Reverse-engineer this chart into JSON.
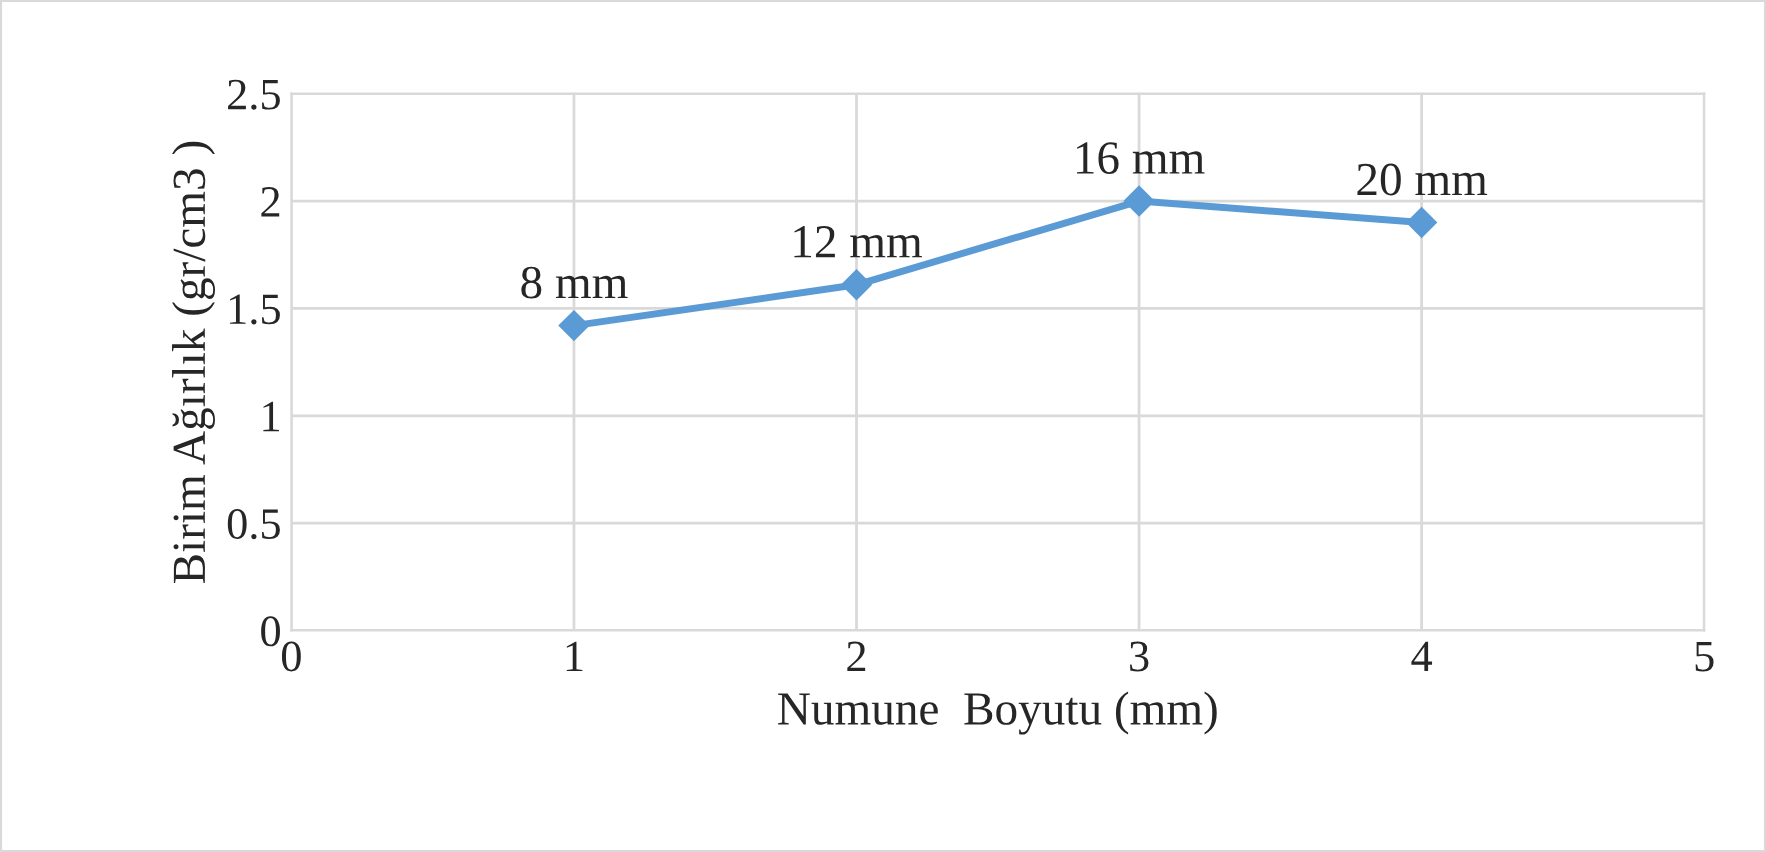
{
  "chart_data": {
    "type": "line",
    "xlabel": "Numune  Boyutu (mm)",
    "ylabel": "Birim Ağırlık (gr/cm3 )",
    "x": [
      1,
      2,
      3,
      4
    ],
    "series": [
      {
        "color": "#5b9bd5",
        "values": [
          1.42,
          1.61,
          2.0,
          1.9
        ]
      }
    ],
    "marker": "diamond",
    "line_style": "solid",
    "xlim": [
      0,
      5
    ],
    "xticks": [
      0,
      1,
      2,
      3,
      4,
      5
    ],
    "ylim": [
      0,
      2.5
    ],
    "yticks": [
      0,
      0.5,
      1,
      1.5,
      2,
      2.5
    ],
    "grid": true,
    "legend": false,
    "annotations": [
      {
        "text": "8 mm",
        "x": 1,
        "y": 1.42
      },
      {
        "text": "12 mm",
        "x": 2,
        "y": 1.61
      },
      {
        "text": "16 mm",
        "x": 3,
        "y": 2.0
      },
      {
        "text": "20 mm",
        "x": 4,
        "y": 1.9
      }
    ]
  }
}
